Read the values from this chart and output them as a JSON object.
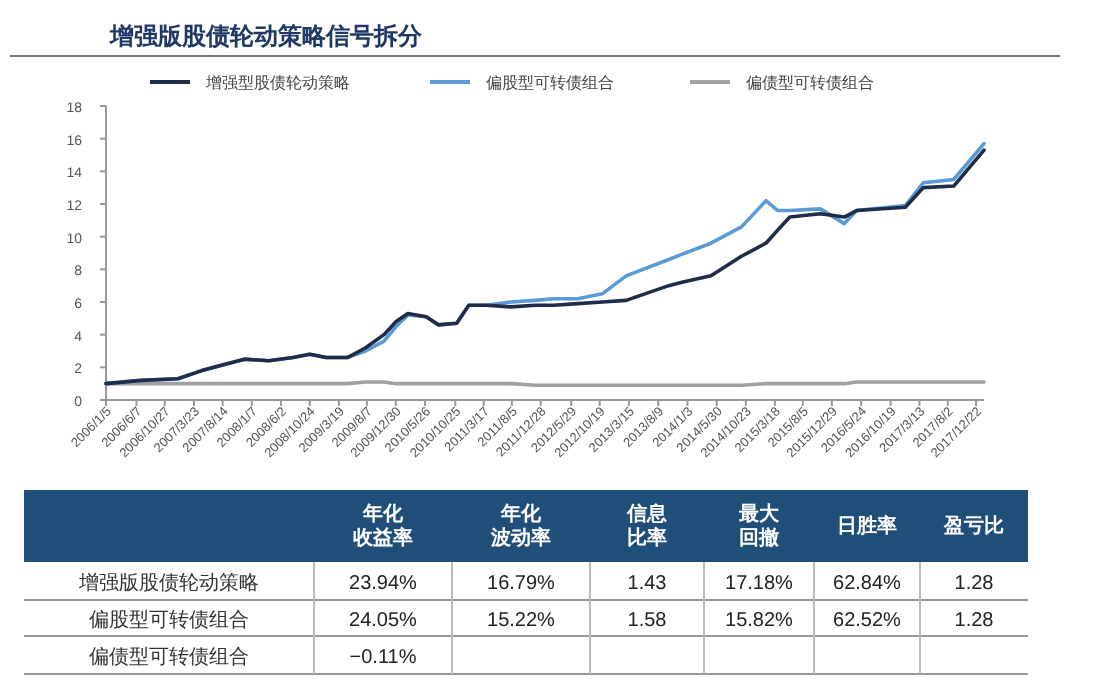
{
  "chart_data": [
    {
      "type": "line",
      "title": "增强版股债轮动策略信号拆分",
      "legend": "top",
      "x": [
        "2006-01-05",
        "2006-07-01",
        "2007-01-01",
        "2007-05-01",
        "2007-09-01",
        "2007-12-01",
        "2008-04-01",
        "2008-08-01",
        "2008-10-24",
        "2009-01-15",
        "2009-05-01",
        "2009-08-01",
        "2009-11-01",
        "2010-01-01",
        "2010-03-01",
        "2010-06-01",
        "2010-08-01",
        "2010-11-01",
        "2011-01-01",
        "2011-04-01",
        "2011-08-01",
        "2011-12-01",
        "2012-03-01",
        "2012-07-01",
        "2012-11-01",
        "2013-03-01",
        "2013-10-01",
        "2013-12-01",
        "2014-05-01",
        "2014-10-01",
        "2015-02-01",
        "2015-04-01",
        "2015-06-01",
        "2015-11-01",
        "2016-03-01",
        "2016-05-01",
        "2017-01-01",
        "2017-04-01",
        "2017-09-01",
        "2018-01-31"
      ],
      "series": [
        {
          "name": "增强型股债轮动策略",
          "color": "#1f2d4a",
          "values": [
            1.0,
            1.2,
            1.3,
            1.8,
            2.2,
            2.5,
            2.4,
            2.6,
            2.8,
            2.6,
            2.6,
            3.2,
            4.0,
            4.8,
            5.3,
            5.1,
            4.6,
            4.7,
            5.8,
            5.8,
            5.7,
            5.8,
            5.8,
            5.9,
            6.0,
            6.1,
            7.0,
            7.2,
            7.6,
            8.8,
            9.6,
            10.4,
            11.2,
            11.4,
            11.2,
            11.6,
            11.8,
            13.0,
            13.1,
            15.3
          ]
        },
        {
          "name": "偏股型可转债组合",
          "color": "#5b9bd5",
          "values": [
            1.0,
            1.2,
            1.3,
            1.8,
            2.2,
            2.5,
            2.4,
            2.6,
            2.8,
            2.6,
            2.6,
            3.0,
            3.6,
            4.5,
            5.2,
            5.1,
            4.6,
            4.7,
            5.8,
            5.8,
            6.0,
            6.1,
            6.2,
            6.2,
            6.5,
            7.6,
            8.6,
            8.9,
            9.6,
            10.6,
            12.2,
            11.6,
            11.6,
            11.7,
            10.8,
            11.6,
            11.9,
            13.3,
            13.5,
            15.7
          ]
        },
        {
          "name": "偏债型可转债组合",
          "color": "#a0a0a0",
          "values": [
            1.0,
            1.0,
            1.0,
            1.0,
            1.0,
            1.0,
            1.0,
            1.0,
            1.0,
            1.0,
            1.0,
            1.1,
            1.1,
            1.0,
            1.0,
            1.0,
            1.0,
            1.0,
            1.0,
            1.0,
            1.0,
            0.9,
            0.9,
            0.9,
            0.9,
            0.9,
            0.9,
            0.9,
            0.9,
            0.9,
            1.0,
            1.0,
            1.0,
            1.0,
            1.0,
            1.1,
            1.1,
            1.1,
            1.1,
            1.1
          ]
        }
      ],
      "xlim": [
        "2006-01-05",
        "2018-01-31"
      ],
      "xticks": [
        {
          "value": "2006-01-05",
          "label": "2006/1/5"
        },
        {
          "value": "2006-06-07",
          "label": "2006/6/7"
        },
        {
          "value": "2006-10-27",
          "label": "2006/10/27"
        },
        {
          "value": "2007-03-23",
          "label": "2007/3/23"
        },
        {
          "value": "2007-08-14",
          "label": "2007/8/14"
        },
        {
          "value": "2008-01-07",
          "label": "2008/1/7"
        },
        {
          "value": "2008-06-02",
          "label": "2008/6/2"
        },
        {
          "value": "2008-10-24",
          "label": "2008/10/24"
        },
        {
          "value": "2009-03-19",
          "label": "2009/3/19"
        },
        {
          "value": "2009-08-07",
          "label": "2009/8/7"
        },
        {
          "value": "2009-12-30",
          "label": "2009/12/30"
        },
        {
          "value": "2010-05-26",
          "label": "2010/5/26"
        },
        {
          "value": "2010-10-25",
          "label": "2010/10/25"
        },
        {
          "value": "2011-03-17",
          "label": "2011/3/17"
        },
        {
          "value": "2011-08-05",
          "label": "2011/8/5"
        },
        {
          "value": "2011-12-28",
          "label": "2011/12/28"
        },
        {
          "value": "2012-05-29",
          "label": "2012/5/29"
        },
        {
          "value": "2012-10-19",
          "label": "2012/10/19"
        },
        {
          "value": "2013-03-15",
          "label": "2013/3/15"
        },
        {
          "value": "2013-08-09",
          "label": "2013/8/9"
        },
        {
          "value": "2014-01-03",
          "label": "2014/1/3"
        },
        {
          "value": "2014-05-30",
          "label": "2014/5/30"
        },
        {
          "value": "2014-10-23",
          "label": "2014/10/23"
        },
        {
          "value": "2015-03-18",
          "label": "2015/3/18"
        },
        {
          "value": "2015-08-05",
          "label": "2015/8/5"
        },
        {
          "value": "2015-12-29",
          "label": "2015/12/29"
        },
        {
          "value": "2016-05-24",
          "label": "2016/5/24"
        },
        {
          "value": "2016-10-19",
          "label": "2016/10/19"
        },
        {
          "value": "2017-03-13",
          "label": "2017/3/13"
        },
        {
          "value": "2017-08-02",
          "label": "2017/8/2"
        },
        {
          "value": "2017-12-22",
          "label": "2017/12/22"
        }
      ],
      "ylim": [
        0,
        18
      ],
      "yticks": [
        0,
        2,
        4,
        6,
        8,
        10,
        12,
        14,
        16,
        18
      ]
    },
    {
      "type": "other",
      "categories": [
        null,
        "年化收益率",
        "年化波动率",
        "信息比率",
        "最大回撤",
        "日胜率",
        "盈亏比"
      ],
      "y_categories": [
        "增强版股债轮动策略",
        "偏股型可转债组合",
        "偏债型可转债组合"
      ],
      "cell_labels": [
        [
          "23.94%",
          "16.79%",
          "1.43",
          "17.18%",
          "62.84%",
          "1.28"
        ],
        [
          "24.05%",
          "15.22%",
          "1.58",
          "15.82%",
          "62.52%",
          "1.28"
        ],
        [
          "−0.11%",
          null,
          null,
          null,
          null,
          null
        ]
      ]
    }
  ]
}
